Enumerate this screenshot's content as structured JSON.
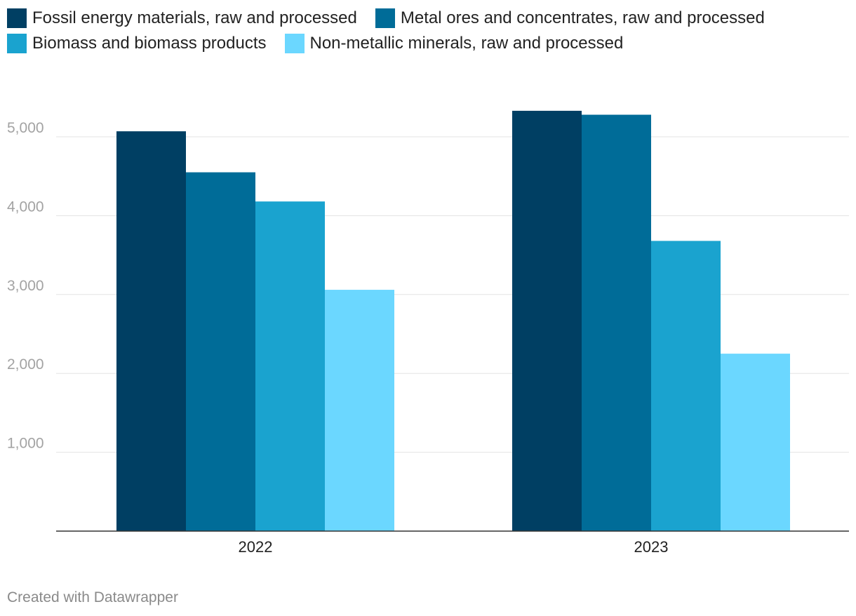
{
  "chart_data": {
    "type": "bar",
    "categories": [
      "2022",
      "2023"
    ],
    "series": [
      {
        "name": "Fossil energy materials, raw and processed",
        "color": "#003f63",
        "values": [
          5070,
          5330
        ]
      },
      {
        "name": "Metal ores and concentrates, raw and processed",
        "color": "#006c98",
        "values": [
          4550,
          5280
        ]
      },
      {
        "name": "Biomass and biomass products",
        "color": "#1aa3cf",
        "values": [
          4180,
          3680
        ]
      },
      {
        "name": "Non-metallic minerals, raw and processed",
        "color": "#6bd7ff",
        "values": [
          3060,
          2250
        ]
      }
    ],
    "ylim": [
      0,
      5500
    ],
    "yticks": [
      1000,
      2000,
      3000,
      4000,
      5000
    ],
    "ytick_labels": [
      "1,000",
      "2,000",
      "3,000",
      "4,000",
      "5,000"
    ],
    "grid": true,
    "legend_position": "top-left",
    "title": "",
    "xlabel": "",
    "ylabel": ""
  },
  "footer": {
    "credit": "Created with Datawrapper"
  }
}
